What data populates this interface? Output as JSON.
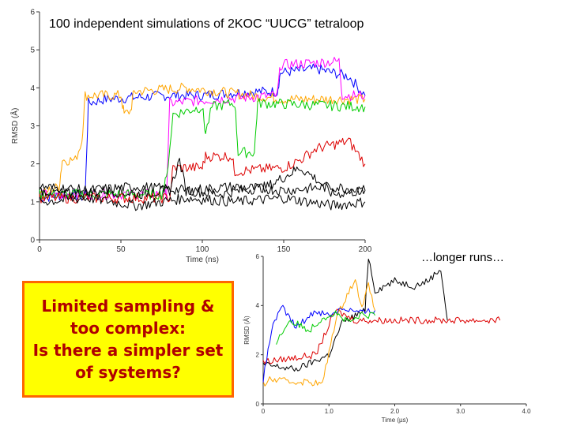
{
  "slide": {
    "title": "100 independent simulations of 2KOC “UUCG” tetraloop",
    "longer_runs": "…longer runs…",
    "callout": "Limited sampling &\ntoo complex:\nIs there a simpler set\nof systems?",
    "callout_bg": "#ffff00",
    "callout_border": "#ff6600",
    "callout_text_color": "#b00000"
  },
  "chart_data": [
    {
      "type": "line",
      "xlabel": "Time (ns)",
      "ylabel": "RMSD (Å)",
      "xlim": [
        0,
        200
      ],
      "ylim": [
        0,
        6
      ],
      "xticks": [
        0,
        50,
        100,
        150,
        200
      ],
      "yticks": [
        0,
        1,
        2,
        3,
        4,
        5,
        6
      ],
      "grid": false,
      "series": [
        {
          "color": "#0000ff",
          "points": [
            [
              0,
              1.1
            ],
            [
              20,
              1.2
            ],
            [
              28,
              1.1
            ],
            [
              30,
              3.6
            ],
            [
              40,
              3.7
            ],
            [
              80,
              3.8
            ],
            [
              100,
              3.8
            ],
            [
              130,
              3.9
            ],
            [
              146,
              3.9
            ],
            [
              148,
              4.4
            ],
            [
              170,
              4.5
            ],
            [
              190,
              4.3
            ],
            [
              200,
              3.8
            ]
          ]
        },
        {
          "color": "#ffa500",
          "points": [
            [
              0,
              1.2
            ],
            [
              12,
              1.4
            ],
            [
              14,
              2.1
            ],
            [
              22,
              2.1
            ],
            [
              26,
              2.6
            ],
            [
              28,
              3.8
            ],
            [
              50,
              3.8
            ],
            [
              52,
              3.3
            ],
            [
              56,
              3.4
            ],
            [
              58,
              3.9
            ],
            [
              90,
              4.0
            ],
            [
              110,
              3.9
            ],
            [
              150,
              3.7
            ],
            [
              200,
              3.7
            ]
          ]
        },
        {
          "color": "#ff00ff",
          "points": [
            [
              0,
              1.2
            ],
            [
              60,
              1.2
            ],
            [
              75,
              1.2
            ],
            [
              78,
              1.2
            ],
            [
              80,
              3.6
            ],
            [
              110,
              3.7
            ],
            [
              146,
              3.8
            ],
            [
              148,
              4.6
            ],
            [
              184,
              4.7
            ],
            [
              186,
              3.8
            ],
            [
              200,
              3.8
            ]
          ]
        },
        {
          "color": "#00cc00",
          "points": [
            [
              0,
              1.2
            ],
            [
              70,
              1.2
            ],
            [
              75,
              1.2
            ],
            [
              78,
              1.6
            ],
            [
              82,
              3.3
            ],
            [
              100,
              3.5
            ],
            [
              102,
              2.8
            ],
            [
              106,
              3.5
            ],
            [
              120,
              3.6
            ],
            [
              122,
              2.3
            ],
            [
              132,
              2.3
            ],
            [
              134,
              3.6
            ],
            [
              200,
              3.5
            ]
          ]
        },
        {
          "color": "#dd0000",
          "points": [
            [
              0,
              1.1
            ],
            [
              60,
              1.1
            ],
            [
              80,
              1.1
            ],
            [
              82,
              1.9
            ],
            [
              100,
              1.9
            ],
            [
              102,
              2.2
            ],
            [
              118,
              2.2
            ],
            [
              120,
              1.8
            ],
            [
              150,
              1.9
            ],
            [
              160,
              2.1
            ],
            [
              170,
              2.4
            ],
            [
              190,
              2.6
            ],
            [
              200,
              2.0
            ]
          ]
        },
        {
          "color": "#000000",
          "points": [
            [
              0,
              1.3
            ],
            [
              20,
              1.2
            ],
            [
              40,
              1.3
            ],
            [
              60,
              1.2
            ],
            [
              80,
              1.3
            ],
            [
              86,
              2.1
            ],
            [
              90,
              1.3
            ],
            [
              110,
              1.2
            ],
            [
              140,
              1.4
            ],
            [
              160,
              1.9
            ],
            [
              170,
              1.6
            ],
            [
              180,
              1.2
            ],
            [
              200,
              1.3
            ]
          ]
        },
        {
          "color": "#000000",
          "points": [
            [
              0,
              1.0
            ],
            [
              30,
              1.1
            ],
            [
              60,
              0.9
            ],
            [
              90,
              1.1
            ],
            [
              120,
              1.0
            ],
            [
              150,
              1.1
            ],
            [
              180,
              0.9
            ],
            [
              200,
              1.0
            ]
          ]
        },
        {
          "color": "#000000",
          "points": [
            [
              0,
              1.4
            ],
            [
              30,
              1.3
            ],
            [
              60,
              1.4
            ],
            [
              90,
              1.3
            ],
            [
              120,
              1.4
            ],
            [
              150,
              1.3
            ],
            [
              180,
              1.4
            ],
            [
              200,
              1.3
            ]
          ]
        }
      ]
    },
    {
      "type": "line",
      "xlabel": "Time (µs)",
      "ylabel": "RMSD (Å)",
      "xlim": [
        0,
        4
      ],
      "ylim": [
        0,
        6
      ],
      "xticks": [
        "0",
        "1.0",
        "2.0",
        "3.0",
        "4.0"
      ],
      "yticks": [
        0,
        2,
        4,
        6
      ],
      "grid": false,
      "series": [
        {
          "color": "#000000",
          "points": [
            [
              0.0,
              1.6
            ],
            [
              0.5,
              1.4
            ],
            [
              1.0,
              2.0
            ],
            [
              1.2,
              3.3
            ],
            [
              1.4,
              3.6
            ],
            [
              1.55,
              3.8
            ],
            [
              1.6,
              6.0
            ],
            [
              1.7,
              4.6
            ],
            [
              2.0,
              5.0
            ],
            [
              2.3,
              4.8
            ],
            [
              2.5,
              5.0
            ],
            [
              2.7,
              5.5
            ],
            [
              2.8,
              3.4
            ]
          ]
        },
        {
          "color": "#dd0000",
          "points": [
            [
              0.0,
              1.7
            ],
            [
              0.8,
              2.0
            ],
            [
              1.1,
              3.8
            ],
            [
              1.4,
              3.4
            ],
            [
              1.6,
              3.4
            ],
            [
              2.0,
              3.4
            ],
            [
              2.5,
              3.4
            ],
            [
              3.0,
              3.4
            ],
            [
              3.6,
              3.4
            ]
          ]
        },
        {
          "color": "#ffa500",
          "points": [
            [
              0.0,
              0.8
            ],
            [
              0.1,
              1.0
            ],
            [
              0.4,
              0.9
            ],
            [
              0.7,
              0.9
            ],
            [
              0.9,
              0.8
            ],
            [
              1.1,
              3.4
            ],
            [
              1.3,
              4.6
            ],
            [
              1.4,
              5.0
            ],
            [
              1.5,
              4.0
            ],
            [
              1.6,
              4.8
            ],
            [
              1.7,
              3.8
            ]
          ]
        },
        {
          "color": "#0000ff",
          "points": [
            [
              0.0,
              1.0
            ],
            [
              0.15,
              3.3
            ],
            [
              0.3,
              3.9
            ],
            [
              0.5,
              3.1
            ],
            [
              0.8,
              3.8
            ],
            [
              1.0,
              3.6
            ],
            [
              1.2,
              3.9
            ],
            [
              1.5,
              3.7
            ],
            [
              1.7,
              3.8
            ]
          ]
        },
        {
          "color": "#00cc00",
          "points": [
            [
              0.2,
              2.5
            ],
            [
              0.4,
              3.4
            ],
            [
              0.7,
              3.0
            ],
            [
              0.9,
              3.5
            ],
            [
              1.1,
              3.7
            ],
            [
              1.3,
              3.3
            ],
            [
              1.5,
              3.6
            ],
            [
              1.7,
              3.6
            ]
          ]
        }
      ]
    }
  ]
}
